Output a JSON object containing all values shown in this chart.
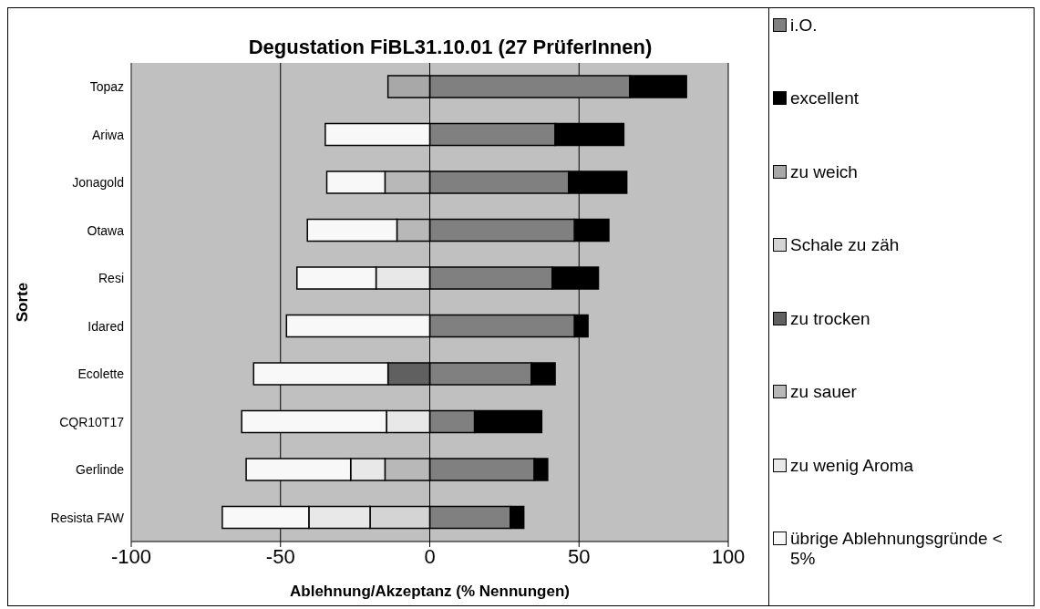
{
  "chart_data": {
    "type": "bar",
    "orientation": "horizontal",
    "stacked": true,
    "title": "Degustation FiBL31.10.01 (27 PrüferInnen)",
    "xlabel": "Ablehnung/Akzeptanz (% Nennungen)",
    "ylabel": "Sorte",
    "categories": [
      "Topaz",
      "Ariwa",
      "Jonagold",
      "Otawa",
      "Resi",
      "Idared",
      "Ecolette",
      "CQR10T17",
      "Gerlinde",
      "Resista FAW"
    ],
    "series": [
      {
        "name": "i.O.",
        "color": "#808080",
        "values": [
          67,
          42,
          46.5,
          48.5,
          41,
          48.5,
          34,
          15,
          35,
          27
        ]
      },
      {
        "name": "excellent",
        "color": "#000000",
        "values": [
          19,
          23,
          19.5,
          11.5,
          15.5,
          4.5,
          8,
          22.5,
          4.5,
          4.5
        ]
      },
      {
        "name": "zu weich",
        "color": "#a8a8a8",
        "values": [
          -14,
          null,
          null,
          null,
          null,
          null,
          null,
          null,
          null,
          null
        ]
      },
      {
        "name": "Schale zu zäh",
        "color": "#d4d4d4",
        "values": [
          null,
          null,
          null,
          null,
          null,
          null,
          null,
          null,
          null,
          -20
        ]
      },
      {
        "name": "zu trocken",
        "color": "#606060",
        "values": [
          null,
          null,
          null,
          null,
          null,
          null,
          -14,
          null,
          null,
          null
        ]
      },
      {
        "name": "zu sauer",
        "color": "#b8b8b8",
        "values": [
          null,
          null,
          -15,
          -11,
          null,
          null,
          null,
          null,
          -15,
          null
        ]
      },
      {
        "name": "zu wenig Aroma",
        "color": "#e8e8e8",
        "values": [
          null,
          null,
          null,
          null,
          -18,
          null,
          null,
          -14.5,
          -11.5,
          -20.5
        ]
      },
      {
        "name": "übrige Ablehnungsgründe < 5%",
        "color": "#f8f8f8",
        "values": [
          null,
          -35,
          -19.5,
          -30,
          -26.5,
          -48,
          -45,
          -48.5,
          -35,
          -29
        ]
      }
    ],
    "xlim": [
      -100,
      100
    ],
    "xticks": [
      -100,
      -50,
      0,
      50,
      100
    ],
    "grid": "x",
    "legend": "right"
  }
}
